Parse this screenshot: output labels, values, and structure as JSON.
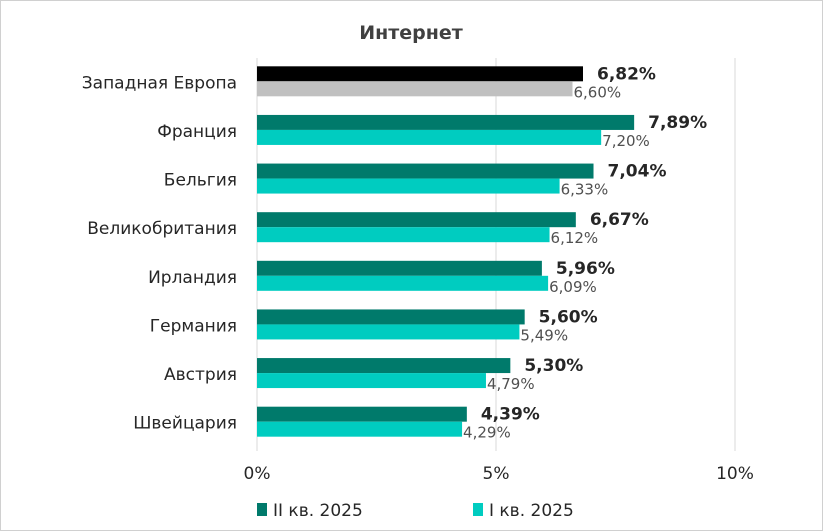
{
  "chart_data": {
    "type": "bar",
    "orientation": "horizontal",
    "title": "Интернет",
    "categories": [
      "Западная Европа",
      "Франция",
      "Бельгия",
      "Великобритания",
      "Ирландия",
      "Германия",
      "Австрия",
      "Швейцария"
    ],
    "series": [
      {
        "name": "II кв. 2025",
        "values": [
          6.82,
          7.89,
          7.04,
          6.67,
          5.96,
          5.6,
          5.3,
          4.39
        ],
        "labels": [
          "6,82%",
          "7,89%",
          "7,04%",
          "6,67%",
          "5,96%",
          "5,60%",
          "5,30%",
          "4,39%"
        ],
        "color": "#007A6B",
        "highlight_color": "#000000"
      },
      {
        "name": "I кв. 2025",
        "values": [
          6.6,
          7.2,
          6.33,
          6.12,
          6.09,
          5.49,
          4.79,
          4.29
        ],
        "labels": [
          "6,60%",
          "7,20%",
          "6,33%",
          "6,12%",
          "6,09%",
          "5,49%",
          "4,79%",
          "4,29%"
        ],
        "color": "#00CCC0",
        "highlight_color": "#C0C0C0"
      }
    ],
    "xlim": [
      0,
      10
    ],
    "xticks": [
      0,
      5,
      10
    ],
    "xtick_labels": [
      "0%",
      "5%",
      "10%"
    ],
    "grid": true,
    "legend": "bottom"
  }
}
